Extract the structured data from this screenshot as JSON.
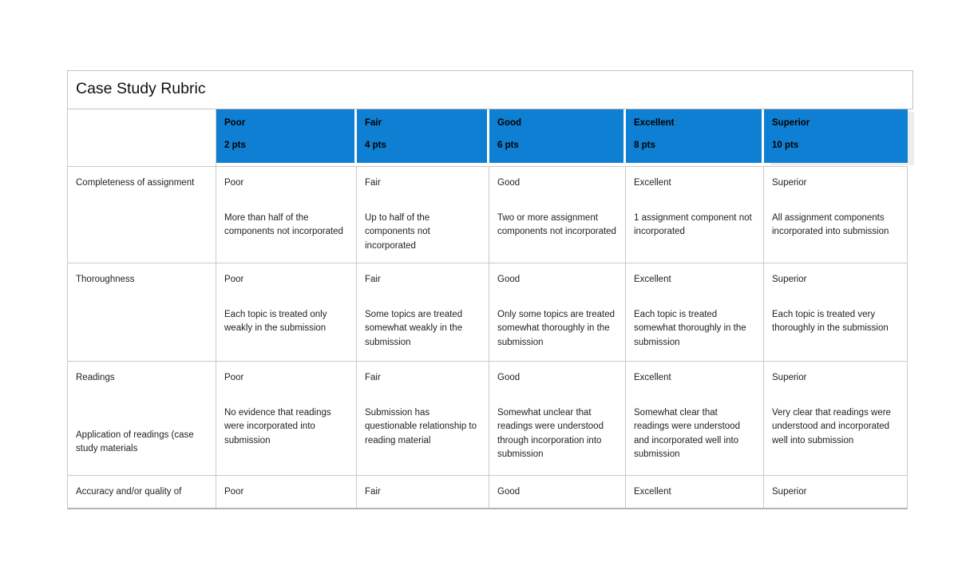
{
  "table": {
    "title": "Case Study Rubric",
    "colors": {
      "header_blue": "#0e7fd2",
      "border_gray": "#c9c9c9",
      "shadow_gray": "#ededed"
    },
    "columns": [
      {
        "label": "Poor",
        "points": "2 pts"
      },
      {
        "label": "Fair",
        "points": "4 pts"
      },
      {
        "label": "Good",
        "points": "6 pts"
      },
      {
        "label": "Excellent",
        "points": "8 pts"
      },
      {
        "label": "Superior",
        "points": "10 pts"
      }
    ],
    "rows": [
      {
        "criterion": "Completeness of assignment",
        "cells": [
          {
            "label": "Poor",
            "description": "More than half of the components not incorporated"
          },
          {
            "label": "Fair",
            "description": "Up to half of the components not incorporated"
          },
          {
            "label": "Good",
            "description": "Two or more assignment components not incorporated"
          },
          {
            "label": "Excellent",
            "description": "1 assignment component not incorporated"
          },
          {
            "label": "Superior",
            "description": "All assignment components incorporated into submission"
          }
        ]
      },
      {
        "criterion": "Thoroughness",
        "cells": [
          {
            "label": "Poor",
            "description": "Each topic is treated only weakly in the submission"
          },
          {
            "label": "Fair",
            "description": "Some topics are treated somewhat weakly in the submission"
          },
          {
            "label": "Good",
            "description": "Only some topics are treated somewhat thoroughly in the submission"
          },
          {
            "label": "Excellent",
            "description": "Each topic is treated somewhat thoroughly in the submission"
          },
          {
            "label": "Superior",
            "description": "Each topic is treated very thoroughly in the submission"
          }
        ]
      },
      {
        "criterion": "Readings",
        "criterion2": "Application of readings (case study materials",
        "cells": [
          {
            "label": "Poor",
            "description": "No evidence that readings were incorporated into submission"
          },
          {
            "label": "Fair",
            "description": "Submission has questionable relationship to reading material"
          },
          {
            "label": "Good",
            "description": "Somewhat unclear that readings were understood through incorporation into submission"
          },
          {
            "label": "Excellent",
            "description": "Somewhat clear that readings were understood and incorporated well into submission"
          },
          {
            "label": "Superior",
            "description": "Very clear that readings were understood and incorporated well into submission"
          }
        ]
      },
      {
        "criterion": "Accuracy and/or quality of",
        "cells": [
          {
            "label": "Poor"
          },
          {
            "label": "Fair"
          },
          {
            "label": "Good"
          },
          {
            "label": "Excellent"
          },
          {
            "label": "Superior"
          }
        ]
      }
    ]
  }
}
